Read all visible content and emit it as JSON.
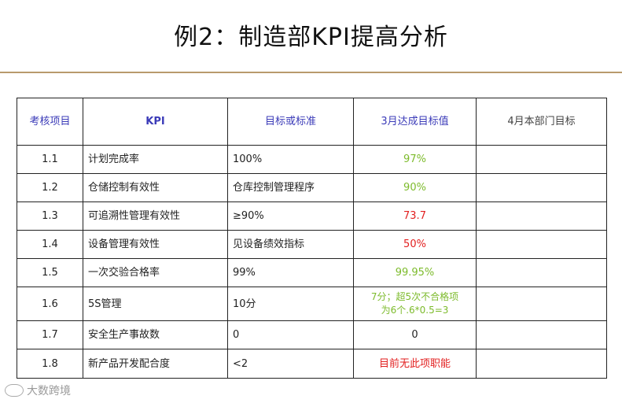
{
  "title": "例2：制造部KPI提高分析",
  "table": {
    "headers": [
      "考核项目",
      "KPI",
      "目标或标准",
      "3月达成目标值",
      "4月本部门目标"
    ],
    "rows": [
      {
        "id": "1.1",
        "kpi": "计划完成率",
        "standard": "100%",
        "march": "97%",
        "status": "green",
        "april": ""
      },
      {
        "id": "1.2",
        "kpi": "仓储控制有效性",
        "standard": "仓库控制管理程序",
        "march": "90%",
        "status": "green",
        "april": ""
      },
      {
        "id": "1.3",
        "kpi": "可追溯性管理有效性",
        "standard": "≥90%",
        "march": "73.7",
        "status": "red",
        "april": ""
      },
      {
        "id": "1.4",
        "kpi": "设备管理有效性",
        "standard": "见设备绩效指标",
        "march": "50%",
        "status": "red",
        "april": ""
      },
      {
        "id": "1.5",
        "kpi": "一次交验合格率",
        "standard": "99%",
        "march": "99.95%",
        "status": "green",
        "april": ""
      },
      {
        "id": "1.6",
        "kpi": "5S管理",
        "standard": "10分",
        "march_line1": "7分；超5次不合格项",
        "march_line2": "为6个.6*0.5=3",
        "status": "green",
        "april": ""
      },
      {
        "id": "1.7",
        "kpi": "安全生产事故数",
        "standard": "0",
        "march": "0",
        "status": "black",
        "april": ""
      },
      {
        "id": "1.8",
        "kpi": "新产品开发配合度",
        "standard": "<2",
        "march": "目前无此项职能",
        "status": "red",
        "april": ""
      }
    ]
  },
  "watermark": "大数跨境",
  "colors": {
    "header_blue": "#3b3bb8",
    "green": "#7dbb2c",
    "red": "#e21f1f",
    "rule": "#b89a6c"
  }
}
